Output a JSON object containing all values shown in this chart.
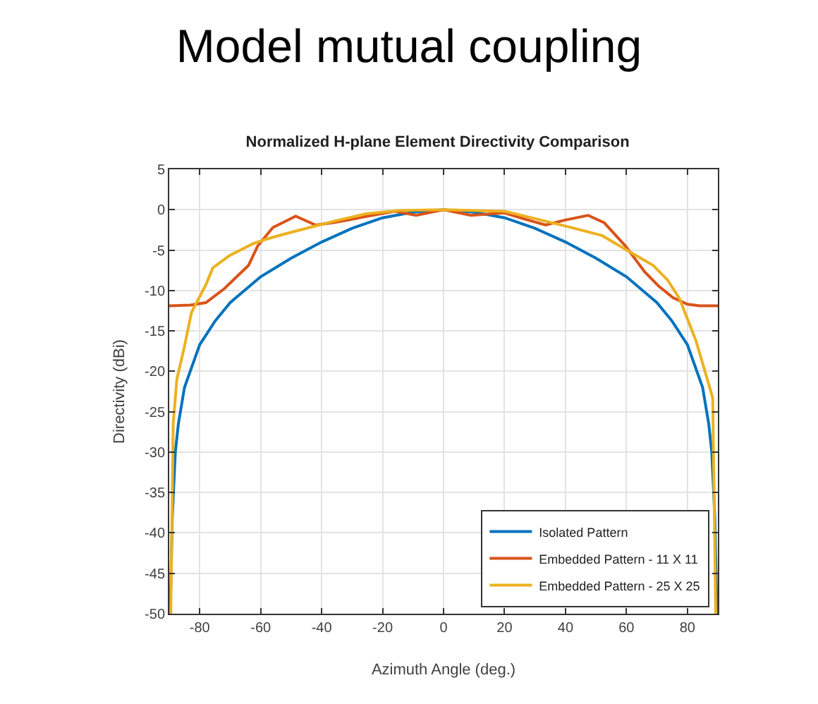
{
  "chart_data": {
    "type": "line",
    "title": "Model mutual coupling",
    "subtitle": "Normalized H-plane Element Directivity Comparison",
    "xlabel": "Azimuth Angle (deg.)",
    "ylabel": "Directivity (dBi)",
    "xlim": [
      -90,
      90
    ],
    "xticks": [
      -80,
      -60,
      -40,
      -20,
      0,
      20,
      40,
      60,
      80
    ],
    "ylim": [
      -50,
      5
    ],
    "yticks": [
      -50,
      -45,
      -40,
      -35,
      -30,
      -25,
      -20,
      -15,
      -10,
      -5,
      0,
      5
    ],
    "grid": true,
    "legend": "bottom right",
    "marker": "none",
    "line_style": "solid",
    "series": [
      {
        "name": "Isolated Pattern",
        "color": "#0072bd",
        "x": [
          -89.7,
          -89,
          -88,
          -87,
          -85,
          -80,
          -75,
          -70,
          -60,
          -50,
          -40,
          -30,
          -20,
          -10,
          0,
          10,
          20,
          30,
          40,
          50,
          60,
          70,
          75,
          80,
          85,
          87,
          88,
          89,
          89.7
        ],
        "values": [
          -50,
          -38,
          -30,
          -26.5,
          -22,
          -16.7,
          -13.8,
          -11.5,
          -8.3,
          -6,
          -4,
          -2.3,
          -1,
          -0.3,
          0,
          -0.3,
          -1,
          -2.3,
          -4,
          -6,
          -8.3,
          -11.5,
          -13.8,
          -16.7,
          -22,
          -26.5,
          -30,
          -38,
          -50
        ]
      },
      {
        "name": "Embedded Pattern - 11 X 11",
        "color": "#d95319",
        "x": [
          -90,
          -83,
          -78,
          -72,
          -64,
          -61,
          -56,
          -48.5,
          -42,
          -36,
          -31.5,
          -25,
          -16,
          -9,
          0,
          9,
          20,
          27,
          33.5,
          39.7,
          47.4,
          52.7,
          59.7,
          66,
          70.7,
          75.3,
          80,
          84,
          90
        ],
        "values": [
          -11.9,
          -11.8,
          -11.5,
          -9.8,
          -6.9,
          -4.5,
          -2.2,
          -0.8,
          -1.9,
          -1.6,
          -1.3,
          -0.8,
          -0.2,
          -0.7,
          0,
          -0.7,
          -0.4,
          -1.2,
          -1.9,
          -1.3,
          -0.7,
          -1.6,
          -4.5,
          -7.7,
          -9.5,
          -10.9,
          -11.7,
          -11.9,
          -11.9
        ]
      },
      {
        "name": "Embedded Pattern - 25 X 25",
        "color": "#edb120",
        "x": [
          -89.5,
          -88.7,
          -87.5,
          -85,
          -82.7,
          -78,
          -75.7,
          -70.3,
          -62.5,
          -57.8,
          -53,
          -44,
          -34.6,
          -25.3,
          -15,
          0,
          10,
          20,
          30,
          39.7,
          52,
          61,
          68.8,
          73.5,
          77.4,
          82.8,
          86,
          88.3,
          89.3
        ],
        "values": [
          -50,
          -26.5,
          -21,
          -16.9,
          -12.7,
          -9.3,
          -7.2,
          -5.7,
          -4.2,
          -3.6,
          -3.1,
          -2.2,
          -1.3,
          -0.5,
          -0.1,
          0,
          -0.1,
          -0.2,
          -1.1,
          -2,
          -3.2,
          -5.2,
          -6.9,
          -8.7,
          -11,
          -16.2,
          -20.3,
          -23.3,
          -50
        ]
      }
    ]
  }
}
